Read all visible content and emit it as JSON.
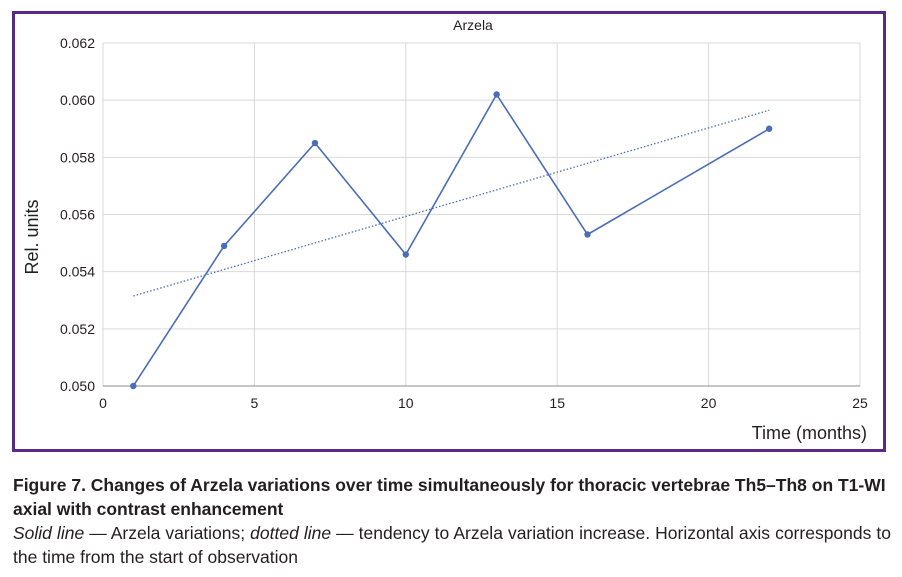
{
  "chart_data": {
    "type": "line",
    "title": "Arzela",
    "xlabel": "Time (months)",
    "ylabel": "Rel. units",
    "xlim": [
      0,
      25
    ],
    "ylim": [
      0.05,
      0.062
    ],
    "xticks": [
      0,
      5,
      10,
      15,
      20,
      25
    ],
    "yticks": [
      "0.050",
      "0.052",
      "0.054",
      "0.056",
      "0.058",
      "0.060",
      "0.062"
    ],
    "grid": true,
    "series": [
      {
        "style": "solid",
        "color": "#4a6db5",
        "x": [
          1,
          4,
          7,
          10,
          13,
          16,
          22
        ],
        "y": [
          0.05,
          0.0549,
          0.0585,
          0.0546,
          0.0602,
          0.0553,
          0.059
        ]
      },
      {
        "style": "dotted",
        "color": "#4a6db5",
        "x": [
          1,
          22
        ],
        "y": [
          0.05315,
          0.05965
        ]
      }
    ]
  },
  "caption": {
    "title": "Figure 7. Changes of Arzela variations over time simultaneously for thoracic vertebrae Th5–Th8 on T1-WI axial with contrast enhancement",
    "solid_term": "Solid line",
    "solid_desc": " — Arzela variations; ",
    "dotted_term": "dotted line",
    "dotted_desc": " — tendency to Arzela variation increase. Horizontal axis corresponds to the time from the start of observation"
  },
  "colors": {
    "frame": "#5b2a86",
    "line": "#4a6db5",
    "grid": "#d9d9d9"
  }
}
